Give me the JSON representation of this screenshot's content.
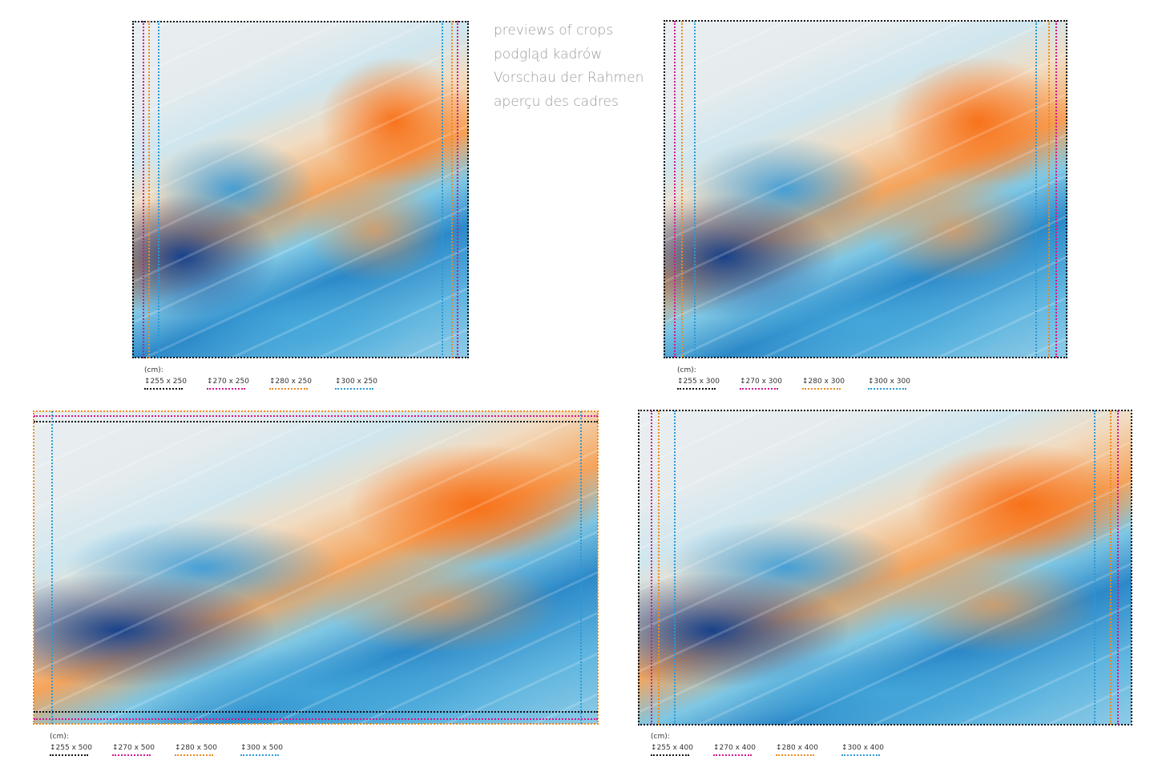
{
  "heading": {
    "lines": [
      "previews of crops",
      "podgląd kadrów",
      "Vorschau der Rahmen",
      "aperçu des cadres"
    ]
  },
  "colors": {
    "black": "#111111",
    "magenta": "#d6158c",
    "orange": "#f08a1e",
    "blue": "#2a9ad6",
    "heading_text": "#9a9a9a"
  },
  "panels": [
    {
      "unit": "(cm):",
      "sizes": [
        "255 x 250",
        "270 x 250",
        "280 x 250",
        "300 x 250"
      ]
    },
    {
      "unit": "(cm):",
      "sizes": [
        "255 x 300",
        "270 x 300",
        "280 x 300",
        "300 x 300"
      ]
    },
    {
      "unit": "(cm):",
      "sizes": [
        "255 x 500",
        "270 x 500",
        "280 x 500",
        "300 x 500"
      ]
    },
    {
      "unit": "(cm):",
      "sizes": [
        "255 x 400",
        "270 x 400",
        "280 x 400",
        "300 x 400"
      ]
    }
  ]
}
